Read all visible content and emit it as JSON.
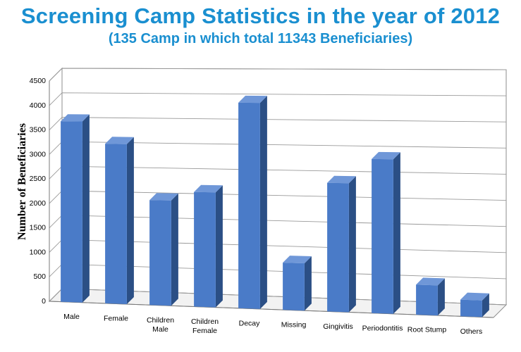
{
  "chart_data": {
    "type": "bar",
    "title": "Screening Camp Statistics in the year of 2012",
    "subtitle": "(135 Camp in which total 11343 Beneficiaries)",
    "xlabel": "",
    "ylabel": "Number of Beneficiaries",
    "ylim": [
      0,
      4500
    ],
    "yticks": [
      "0",
      "500",
      "1000",
      "1500",
      "2000",
      "2500",
      "3000",
      "3500",
      "4000",
      "4500"
    ],
    "grid": true,
    "legend": "none",
    "bar_color": "#4a7bc8",
    "categories": [
      "Male",
      "Female",
      "Children Male",
      "Children Female",
      "Decay",
      "Missing",
      "Gingivitis",
      "Periodontitis",
      "Root Stump",
      "Others"
    ],
    "values": [
      3680,
      3230,
      2110,
      2290,
      4080,
      930,
      2520,
      3000,
      580,
      320
    ]
  }
}
